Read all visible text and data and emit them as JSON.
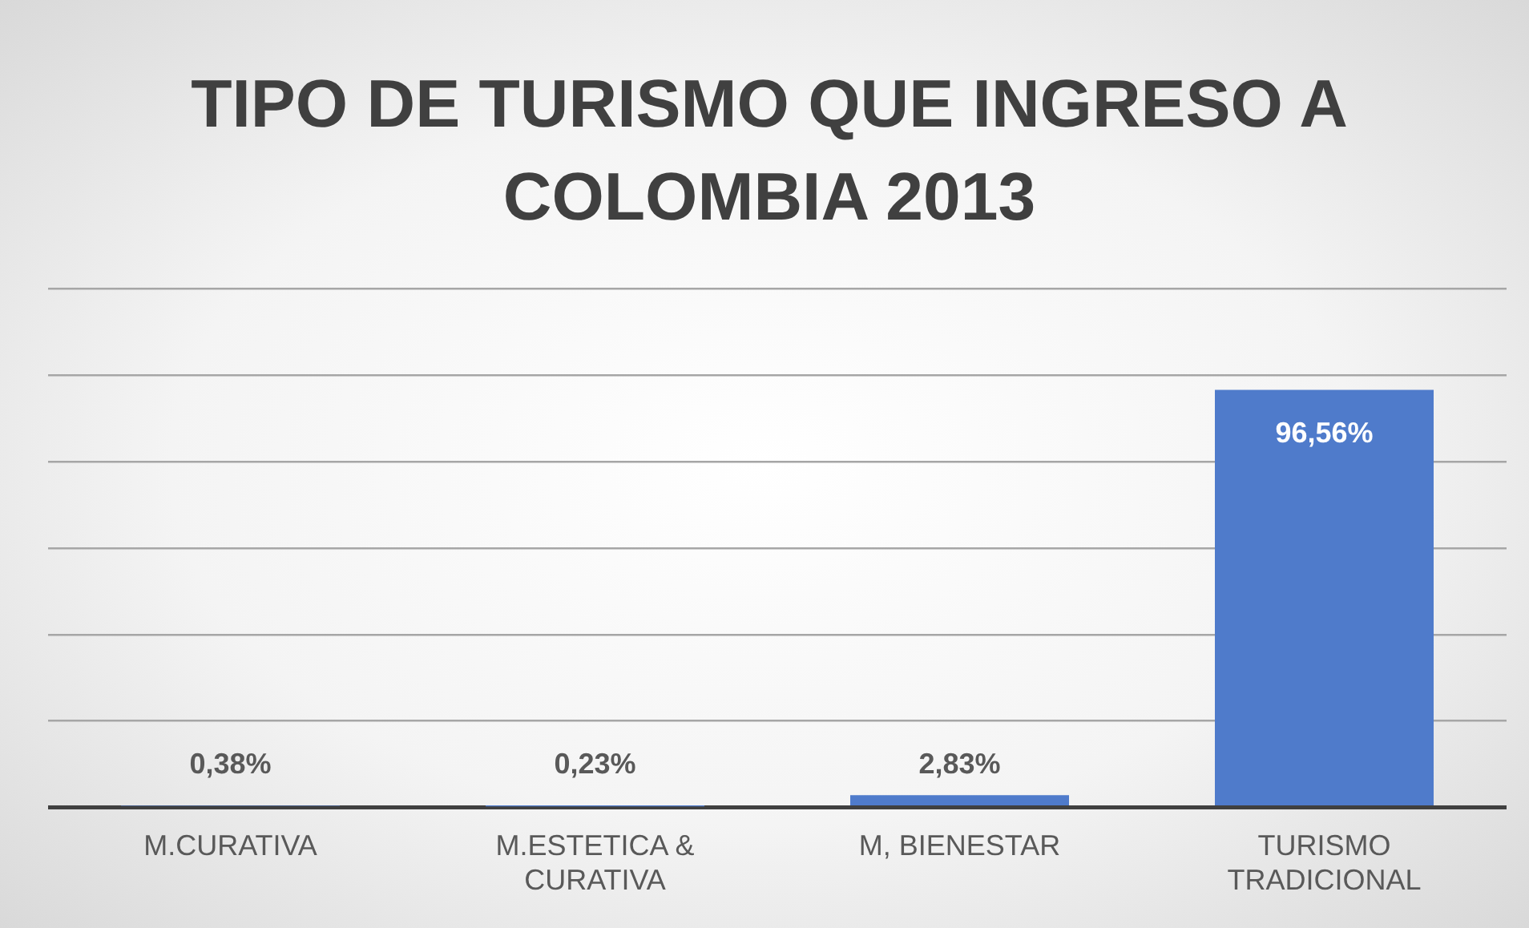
{
  "chart_data": {
    "type": "bar",
    "title": "TIPO DE TURISMO QUE INGRESO A COLOMBIA 2013",
    "categories": [
      "M.CURATIVA",
      "M.ESTETICA & CURATIVA",
      "M, BIENESTAR",
      "TURISMO TRADICIONAL"
    ],
    "values": [
      0.38,
      0.23,
      2.83,
      96.56
    ],
    "value_labels": [
      "0,38%",
      "0,23%",
      "2,83%",
      "96,56%"
    ],
    "color": "#4f7bcb",
    "ylim": [
      0,
      120
    ],
    "yticks": [
      {
        "value": 0,
        "label": null
      },
      {
        "value": 20,
        "label": null
      },
      {
        "value": 40,
        "label": null
      },
      {
        "value": 60,
        "label": null
      },
      {
        "value": 80,
        "label": null
      },
      {
        "value": 100,
        "label": null
      },
      {
        "value": 120,
        "label": null
      }
    ],
    "tick_labels": "x",
    "grid": "y",
    "legend": false
  }
}
